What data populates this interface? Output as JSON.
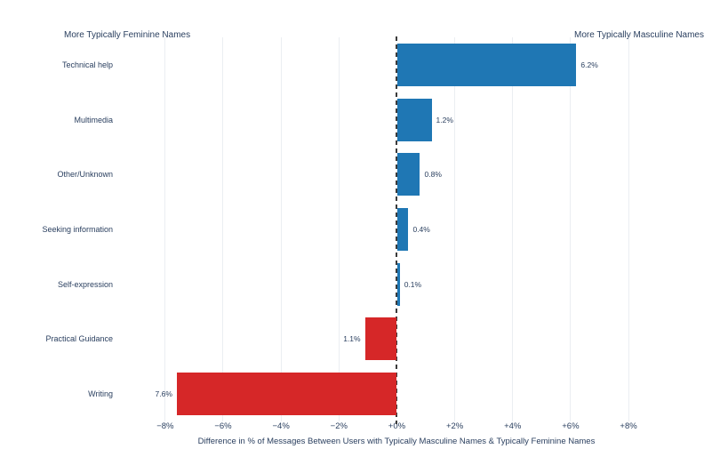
{
  "chart_data": {
    "type": "bar",
    "orientation": "horizontal",
    "left_header": "More Typically Feminine Names",
    "right_header": "More Typically Masculine Names",
    "categories": [
      "Technical help",
      "Multimedia",
      "Other/Unknown",
      "Seeking information",
      "Self-expression",
      "Practical Guidance",
      "Writing"
    ],
    "values": [
      6.2,
      1.2,
      0.8,
      0.4,
      0.1,
      -1.1,
      -7.6
    ],
    "value_labels": [
      "6.2%",
      "1.2%",
      "0.8%",
      "0.4%",
      "0.1%",
      "1.1%",
      "7.6%"
    ],
    "xlabel": "Difference in % of Messages Between Users with Typically Masculine Names & Typically Feminine Names",
    "xticks": {
      "values": [
        -8,
        -6,
        -4,
        -2,
        0,
        2,
        4,
        6,
        8
      ],
      "labels": [
        "−8%",
        "−6%",
        "−4%",
        "−2%",
        "+0%",
        "+2%",
        "+4%",
        "+6%",
        "+8%"
      ]
    },
    "xlim": [
      -9.1,
      10.7
    ],
    "grid": true,
    "zero_line": "dashed",
    "legend": "none",
    "colors": {
      "positive_bar": "#1f77b4",
      "negative_bar": "#d62728",
      "text": "#2a3f5f",
      "gridline": "#ebeef2",
      "zeroline": "#3b3b3b",
      "background": "#ffffff"
    }
  }
}
